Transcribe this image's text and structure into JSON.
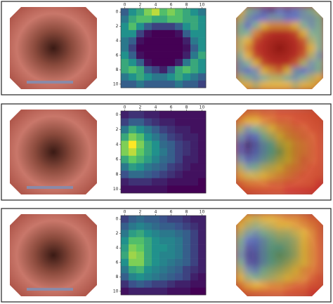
{
  "chart_data": [
    {
      "type": "heatmap",
      "colormap": "viridis",
      "clim": [
        0,
        1
      ],
      "xlim": [
        -0.5,
        10.5
      ],
      "ylim": [
        10.5,
        -0.5
      ],
      "xticks": [
        0,
        2,
        4,
        6,
        8,
        10
      ],
      "yticks": [
        0,
        2,
        4,
        6,
        8,
        10
      ],
      "values": [
        [
          0.3,
          0.5,
          0.6,
          0.8,
          0.9,
          0.7,
          0.8,
          0.7,
          0.6,
          0.5,
          0.4
        ],
        [
          0.4,
          0.6,
          0.7,
          0.7,
          0.6,
          0.6,
          0.7,
          0.7,
          0.6,
          0.6,
          0.5
        ],
        [
          0.5,
          0.7,
          0.5,
          0.3,
          0.2,
          0.2,
          0.2,
          0.3,
          0.5,
          0.6,
          0.5
        ],
        [
          0.5,
          0.5,
          0.2,
          0.05,
          0,
          0,
          0,
          0.05,
          0.3,
          0.5,
          0.5
        ],
        [
          0.4,
          0.3,
          0.05,
          0,
          0,
          0,
          0,
          0,
          0.1,
          0.4,
          0.5
        ],
        [
          0.4,
          0.2,
          0,
          0,
          0,
          0,
          0,
          0,
          0.05,
          0.3,
          0.5
        ],
        [
          0.5,
          0.3,
          0.05,
          0,
          0,
          0,
          0,
          0,
          0.1,
          0.4,
          0.6
        ],
        [
          0.6,
          0.5,
          0.3,
          0.05,
          0,
          0,
          0,
          0.1,
          0.4,
          0.6,
          0.5
        ],
        [
          0.6,
          0.7,
          0.6,
          0.3,
          0.2,
          0.1,
          0.3,
          0.6,
          0.7,
          0.6,
          0.5
        ],
        [
          0.4,
          0.5,
          0.6,
          0.5,
          0.4,
          0.4,
          0.5,
          0.6,
          0.5,
          0.4,
          0.3
        ],
        [
          0.3,
          0.3,
          0.4,
          0.3,
          0.3,
          0.3,
          0.3,
          0.4,
          0.3,
          0.3,
          0.2
        ]
      ]
    },
    {
      "type": "heatmap",
      "colormap": "viridis",
      "clim": [
        0,
        1
      ],
      "xlim": [
        -0.5,
        10.5
      ],
      "ylim": [
        10.5,
        -0.5
      ],
      "xticks": [
        0,
        2,
        4,
        6,
        8,
        10
      ],
      "yticks": [
        0,
        2,
        4,
        6,
        8,
        10
      ],
      "values": [
        [
          0.1,
          0.15,
          0.15,
          0.1,
          0.1,
          0.05,
          0.05,
          0.05,
          0.05,
          0.05,
          0.05
        ],
        [
          0.2,
          0.3,
          0.3,
          0.2,
          0.15,
          0.1,
          0.1,
          0.05,
          0.05,
          0.05,
          0.05
        ],
        [
          0.4,
          0.6,
          0.5,
          0.4,
          0.3,
          0.2,
          0.15,
          0.1,
          0.1,
          0.05,
          0.05
        ],
        [
          0.6,
          0.8,
          0.7,
          0.5,
          0.4,
          0.3,
          0.2,
          0.15,
          0.1,
          0.1,
          0.05
        ],
        [
          0.8,
          1.0,
          0.8,
          0.6,
          0.5,
          0.35,
          0.3,
          0.2,
          0.15,
          0.1,
          0.05
        ],
        [
          0.8,
          0.9,
          0.75,
          0.6,
          0.5,
          0.4,
          0.3,
          0.2,
          0.15,
          0.1,
          0.05
        ],
        [
          0.6,
          0.75,
          0.65,
          0.55,
          0.45,
          0.35,
          0.3,
          0.2,
          0.1,
          0.1,
          0.05
        ],
        [
          0.4,
          0.55,
          0.5,
          0.4,
          0.35,
          0.3,
          0.2,
          0.15,
          0.1,
          0.05,
          0.05
        ],
        [
          0.25,
          0.35,
          0.35,
          0.3,
          0.25,
          0.2,
          0.15,
          0.1,
          0.05,
          0.05,
          0.05
        ],
        [
          0.1,
          0.15,
          0.15,
          0.15,
          0.1,
          0.1,
          0.05,
          0.05,
          0.05,
          0.05,
          0
        ],
        [
          0.05,
          0.05,
          0.05,
          0.05,
          0.05,
          0.05,
          0,
          0,
          0,
          0,
          0
        ]
      ]
    },
    {
      "type": "heatmap",
      "colormap": "viridis",
      "clim": [
        0,
        1
      ],
      "xlim": [
        -0.5,
        10.5
      ],
      "ylim": [
        10.5,
        -0.5
      ],
      "xticks": [
        0,
        2,
        4,
        6,
        8,
        10
      ],
      "yticks": [
        0,
        2,
        4,
        6,
        8,
        10
      ],
      "values": [
        [
          0.2,
          0.3,
          0.35,
          0.3,
          0.3,
          0.25,
          0.2,
          0.2,
          0.15,
          0.1,
          0.1
        ],
        [
          0.3,
          0.4,
          0.45,
          0.4,
          0.35,
          0.3,
          0.3,
          0.25,
          0.2,
          0.15,
          0.1
        ],
        [
          0.4,
          0.55,
          0.6,
          0.5,
          0.45,
          0.4,
          0.4,
          0.35,
          0.3,
          0.2,
          0.1
        ],
        [
          0.5,
          0.7,
          0.7,
          0.6,
          0.5,
          0.45,
          0.45,
          0.4,
          0.3,
          0.2,
          0.1
        ],
        [
          0.55,
          0.8,
          0.75,
          0.6,
          0.5,
          0.5,
          0.45,
          0.4,
          0.3,
          0.2,
          0.1
        ],
        [
          0.6,
          0.85,
          0.8,
          0.6,
          0.5,
          0.45,
          0.45,
          0.4,
          0.3,
          0.2,
          0.1
        ],
        [
          0.5,
          0.8,
          0.8,
          0.6,
          0.5,
          0.45,
          0.4,
          0.35,
          0.3,
          0.2,
          0.1
        ],
        [
          0.4,
          0.6,
          0.65,
          0.5,
          0.45,
          0.4,
          0.35,
          0.3,
          0.2,
          0.15,
          0.1
        ],
        [
          0.3,
          0.45,
          0.5,
          0.45,
          0.4,
          0.35,
          0.3,
          0.25,
          0.2,
          0.1,
          0.05
        ],
        [
          0.15,
          0.25,
          0.3,
          0.25,
          0.2,
          0.2,
          0.15,
          0.1,
          0.1,
          0.05,
          0.05
        ],
        [
          0.05,
          0.1,
          0.1,
          0.1,
          0.1,
          0.1,
          0.05,
          0.05,
          0.05,
          0,
          0
        ]
      ]
    }
  ]
}
